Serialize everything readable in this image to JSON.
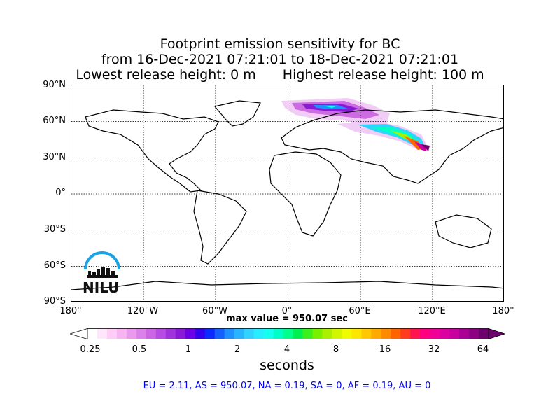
{
  "title": {
    "line1": "Footprint emission sensitivity for BC",
    "line2": "from 16-Dec-2021 07:21:01 to 18-Dec-2021 07:21:01",
    "line3a": "Lowest release height: 0 m",
    "line3b": "Highest release height: 100 m"
  },
  "lat_labels": [
    "90°N",
    "60°N",
    "30°N",
    "0°",
    "30°S",
    "60°S",
    "90°S"
  ],
  "lon_labels": [
    "180°",
    "120°W",
    "60°W",
    "0°",
    "60°E",
    "120°E",
    "180°"
  ],
  "max_value_text": "max value = 950.07 sec",
  "colorbar": {
    "units": "seconds",
    "ticks": [
      "0.25",
      "0.5",
      "1",
      "2",
      "4",
      "8",
      "16",
      "32",
      "64"
    ],
    "colors": [
      "#ffffff",
      "#ffe6fb",
      "#ffccf7",
      "#f7b3f2",
      "#eb99ee",
      "#dc80ea",
      "#cc66e6",
      "#b84ce2",
      "#a033dc",
      "#8a1ad8",
      "#6c00e6",
      "#3300ee",
      "#0a2aff",
      "#1460ff",
      "#1e90ff",
      "#28b4ff",
      "#32d2ff",
      "#28ecff",
      "#14fff0",
      "#00ffc8",
      "#00ff8c",
      "#00f050",
      "#3cf01e",
      "#78f000",
      "#aaf000",
      "#d2f500",
      "#f0fa00",
      "#ffe600",
      "#ffc800",
      "#ffaa00",
      "#ff8c00",
      "#ff6400",
      "#ff3c1e",
      "#ff1450",
      "#ff0080",
      "#f00096",
      "#dc00a0",
      "#c800a0",
      "#aa0096",
      "#8c0082",
      "#6e006e"
    ]
  },
  "region_summary": "EU = 2.11,  AS = 950.07,  NA = 0.19,  SA = 0,  AF = 0.19,  AU = 0",
  "logo_text": "NILU"
}
